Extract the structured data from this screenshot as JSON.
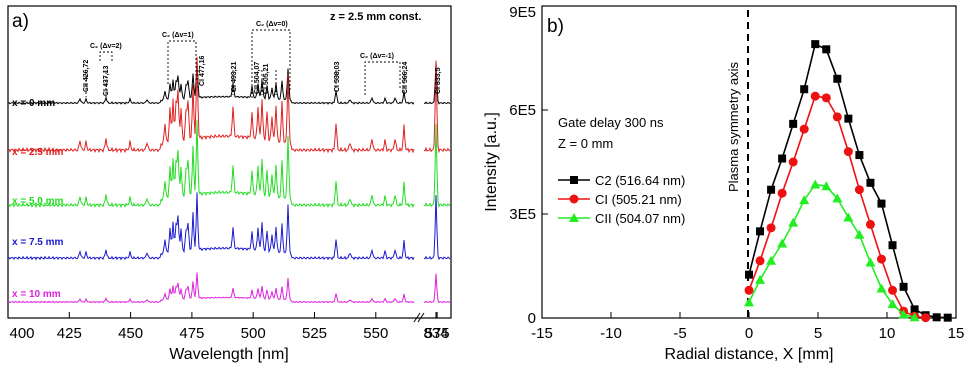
{
  "panel_a": {
    "label": "a)",
    "note": "z = 2.5 mm const.",
    "xlabel": "Wavelength [nm]",
    "x_ticks": [
      "400",
      "425",
      "450",
      "475",
      "500",
      "525",
      "550",
      "575",
      "834"
    ],
    "traces": [
      {
        "label": "x = 0 mm",
        "color": "#000000"
      },
      {
        "label": "x = 2.5 mm",
        "color": "#e02020"
      },
      {
        "label": "x = 5.0 mm",
        "color": "#22dd22"
      },
      {
        "label": "x = 7.5 mm",
        "color": "#1a1ad0"
      },
      {
        "label": "x = 10 mm",
        "color": "#dd22dd"
      }
    ],
    "line_labels": [
      "CII 426,72",
      "CI 437,13",
      "CI 477,16",
      "CI 493,21",
      "CII 504,07",
      "CI 505,21",
      "CI 538,03",
      "CII 566,24",
      "CI 833,5"
    ],
    "band_labels": [
      "C₂ (Δv=2)",
      "C₂ (Δv=1)",
      "C₂ (Δv=0)",
      "C₂ (Δv=-1)"
    ]
  },
  "chart_data": {
    "type": "line",
    "title": "",
    "panel_label": "b)",
    "xlabel": "Radial distance, X [mm]",
    "ylabel": "Intensity [a.u.]",
    "xlim": [
      -15,
      15
    ],
    "ylim": [
      0,
      900000
    ],
    "x_ticks": [
      "-15",
      "-10",
      "-5",
      "0",
      "5",
      "10",
      "15"
    ],
    "y_ticks": [
      "0",
      "3E5",
      "6E5",
      "9E5"
    ],
    "annotations": [
      "Gate delay 300 ns",
      "Z = 0 mm",
      "Plasma symmetry axis"
    ],
    "legend_position": "center-left",
    "series": [
      {
        "name": "C2 (516.64 nm)",
        "color": "#000000",
        "marker": "square",
        "x": [
          0,
          0.8,
          1.6,
          2.4,
          3.2,
          4.0,
          4.8,
          5.6,
          6.4,
          7.2,
          8.0,
          8.8,
          9.6,
          10.4,
          11.2,
          12.0,
          12.8,
          13.6,
          14.4
        ],
        "y": [
          125000,
          250000,
          370000,
          460000,
          560000,
          660000,
          790000,
          775000,
          690000,
          575000,
          470000,
          390000,
          330000,
          210000,
          90000,
          25000,
          8000,
          2000,
          1000
        ]
      },
      {
        "name": "CI (505.21 nm)",
        "color": "#ee1111",
        "marker": "circle",
        "x": [
          0,
          0.8,
          1.6,
          2.4,
          3.2,
          4.0,
          4.8,
          5.6,
          6.4,
          7.2,
          8.0,
          8.8,
          9.6,
          10.4,
          11.2,
          12.0,
          12.8
        ],
        "y": [
          80000,
          165000,
          260000,
          360000,
          450000,
          545000,
          640000,
          635000,
          580000,
          480000,
          370000,
          270000,
          170000,
          80000,
          20000,
          5000,
          1000
        ]
      },
      {
        "name": "CII (504.07 nm)",
        "color": "#22ee22",
        "marker": "triangle",
        "x": [
          0,
          0.8,
          1.6,
          2.4,
          3.2,
          4.0,
          4.8,
          5.6,
          6.4,
          7.2,
          8.0,
          8.8,
          9.6,
          10.4,
          11.2,
          12.0
        ],
        "y": [
          45000,
          110000,
          165000,
          215000,
          275000,
          340000,
          385000,
          380000,
          345000,
          290000,
          240000,
          160000,
          85000,
          40000,
          10000,
          2000
        ]
      }
    ]
  }
}
